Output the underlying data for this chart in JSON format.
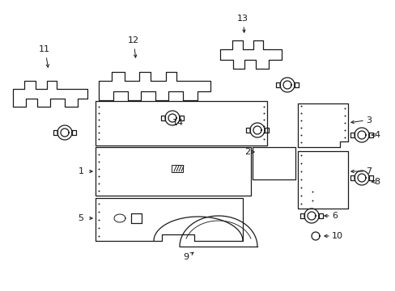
{
  "bg_color": "#ffffff",
  "line_color": "#1a1a1a",
  "lw": 0.9,
  "panel_dots_color": "#333333",
  "label_fs": 8,
  "arrow_lw": 0.7,
  "fastener_size": 0.022,
  "small_fastener_size": 0.011
}
